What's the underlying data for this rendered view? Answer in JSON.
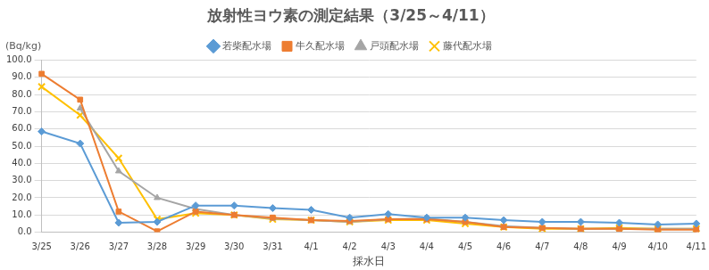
{
  "chart_data": {
    "type": "line",
    "title": "放射性ヨウ素の測定結果（3/25～4/11）",
    "y_label": "(Bq/kg)",
    "x_label": "採水日",
    "categories": [
      "3/25",
      "3/26",
      "3/27",
      "3/28",
      "3/29",
      "3/30",
      "3/31",
      "4/1",
      "4/2",
      "4/3",
      "4/4",
      "4/5",
      "4/6",
      "4/7",
      "4/8",
      "4/9",
      "4/10",
      "4/11"
    ],
    "series": [
      {
        "name": "若柴配水場",
        "color": "#5B9BD5",
        "marker": "diamond",
        "line_style": "solid",
        "values": [
          58.5,
          51.5,
          5.5,
          6,
          15.5,
          15.5,
          14,
          13,
          8.5,
          10.5,
          8.5,
          8.5,
          7,
          6,
          6,
          5.5,
          4.5,
          5
        ]
      },
      {
        "name": "牛久配水場",
        "color": "#ED7D31",
        "marker": "square",
        "line_style": "solid",
        "values": [
          92,
          77,
          12,
          0.5,
          12,
          10,
          8.5,
          7,
          6.5,
          7.5,
          7.5,
          6,
          3,
          2.5,
          2,
          2,
          1.5,
          1.5
        ]
      },
      {
        "name": "戸頭配水場",
        "color": "#A5A5A5",
        "marker": "triangle",
        "line_style": "solid",
        "values": [
          null,
          72,
          35.5,
          20,
          13.5,
          10,
          8,
          7,
          6,
          7.5,
          8,
          6,
          3.5,
          2.5,
          2,
          2,
          2,
          2
        ]
      },
      {
        "name": "藤代配水場",
        "color": "#FFC000",
        "marker": "x",
        "line_style": "solid",
        "values": [
          84.5,
          68,
          43,
          7.5,
          11,
          10,
          7.5,
          7,
          6,
          7,
          7,
          5,
          3,
          2,
          2,
          2.5,
          2,
          2
        ]
      }
    ],
    "ylim": [
      0,
      100
    ],
    "yticks": [
      {
        "value": 0,
        "label": "0.0"
      },
      {
        "value": 10,
        "label": "10.0"
      },
      {
        "value": 20,
        "label": "20.0"
      },
      {
        "value": 30,
        "label": "30.0"
      },
      {
        "value": 40,
        "label": "40.0"
      },
      {
        "value": 50,
        "label": "50.0"
      },
      {
        "value": 60,
        "label": "60.0"
      },
      {
        "value": 70,
        "label": "70.0"
      },
      {
        "value": 80,
        "label": "80.0"
      },
      {
        "value": 90,
        "label": "90.0"
      },
      {
        "value": 100,
        "label": "100.0"
      }
    ],
    "grid": true,
    "legend": "top"
  }
}
